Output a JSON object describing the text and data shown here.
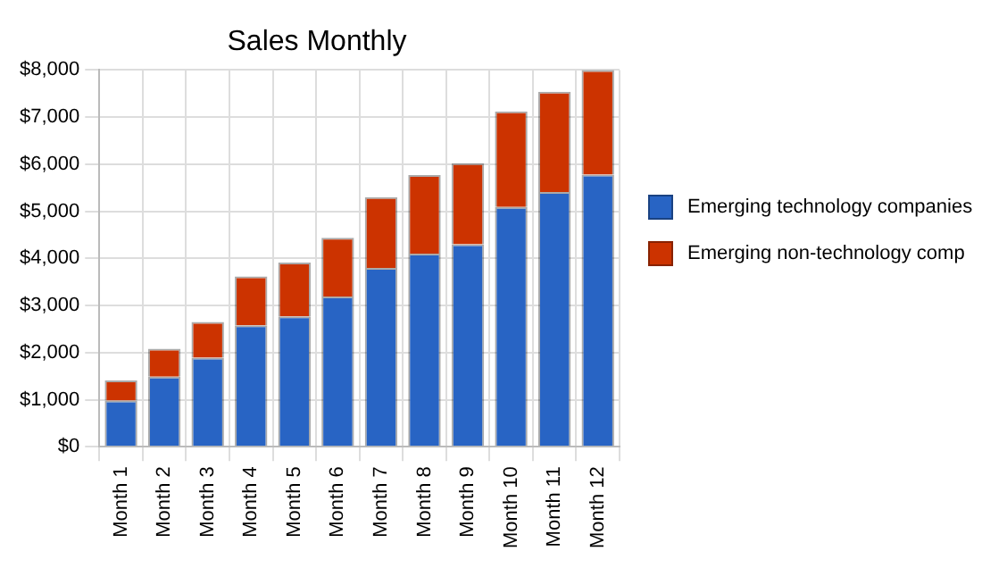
{
  "chart_data": {
    "type": "bar",
    "title": "Sales Monthly",
    "stacked": true,
    "grid": true,
    "legend": "right",
    "categories": [
      "Month 1",
      "Month 2",
      "Month 3",
      "Month 4",
      "Month 5",
      "Month 6",
      "Month 7",
      "Month 8",
      "Month 9",
      "Month 10",
      "Month 11",
      "Month 12"
    ],
    "series": [
      {
        "name": "Emerging technology companies",
        "color": "#2864c4",
        "values": [
          980,
          1490,
          1890,
          2580,
          2770,
          3190,
          3800,
          4100,
          4300,
          5090,
          5410,
          5780
        ]
      },
      {
        "name": "Emerging non-technology comp",
        "color": "#cc3300",
        "values": [
          430,
          590,
          760,
          1040,
          1140,
          1250,
          1500,
          1670,
          1720,
          2030,
          2130,
          2220
        ]
      }
    ],
    "ylim": [
      0,
      8000
    ],
    "yticks": [
      {
        "value": 0,
        "label": "$0"
      },
      {
        "value": 1000,
        "label": "$1,000"
      },
      {
        "value": 2000,
        "label": "$2,000"
      },
      {
        "value": 3000,
        "label": "$3,000"
      },
      {
        "value": 4000,
        "label": "$4,000"
      },
      {
        "value": 5000,
        "label": "$5,000"
      },
      {
        "value": 6000,
        "label": "$6,000"
      },
      {
        "value": 7000,
        "label": "$7,000"
      },
      {
        "value": 8000,
        "label": "$8,000"
      }
    ]
  }
}
